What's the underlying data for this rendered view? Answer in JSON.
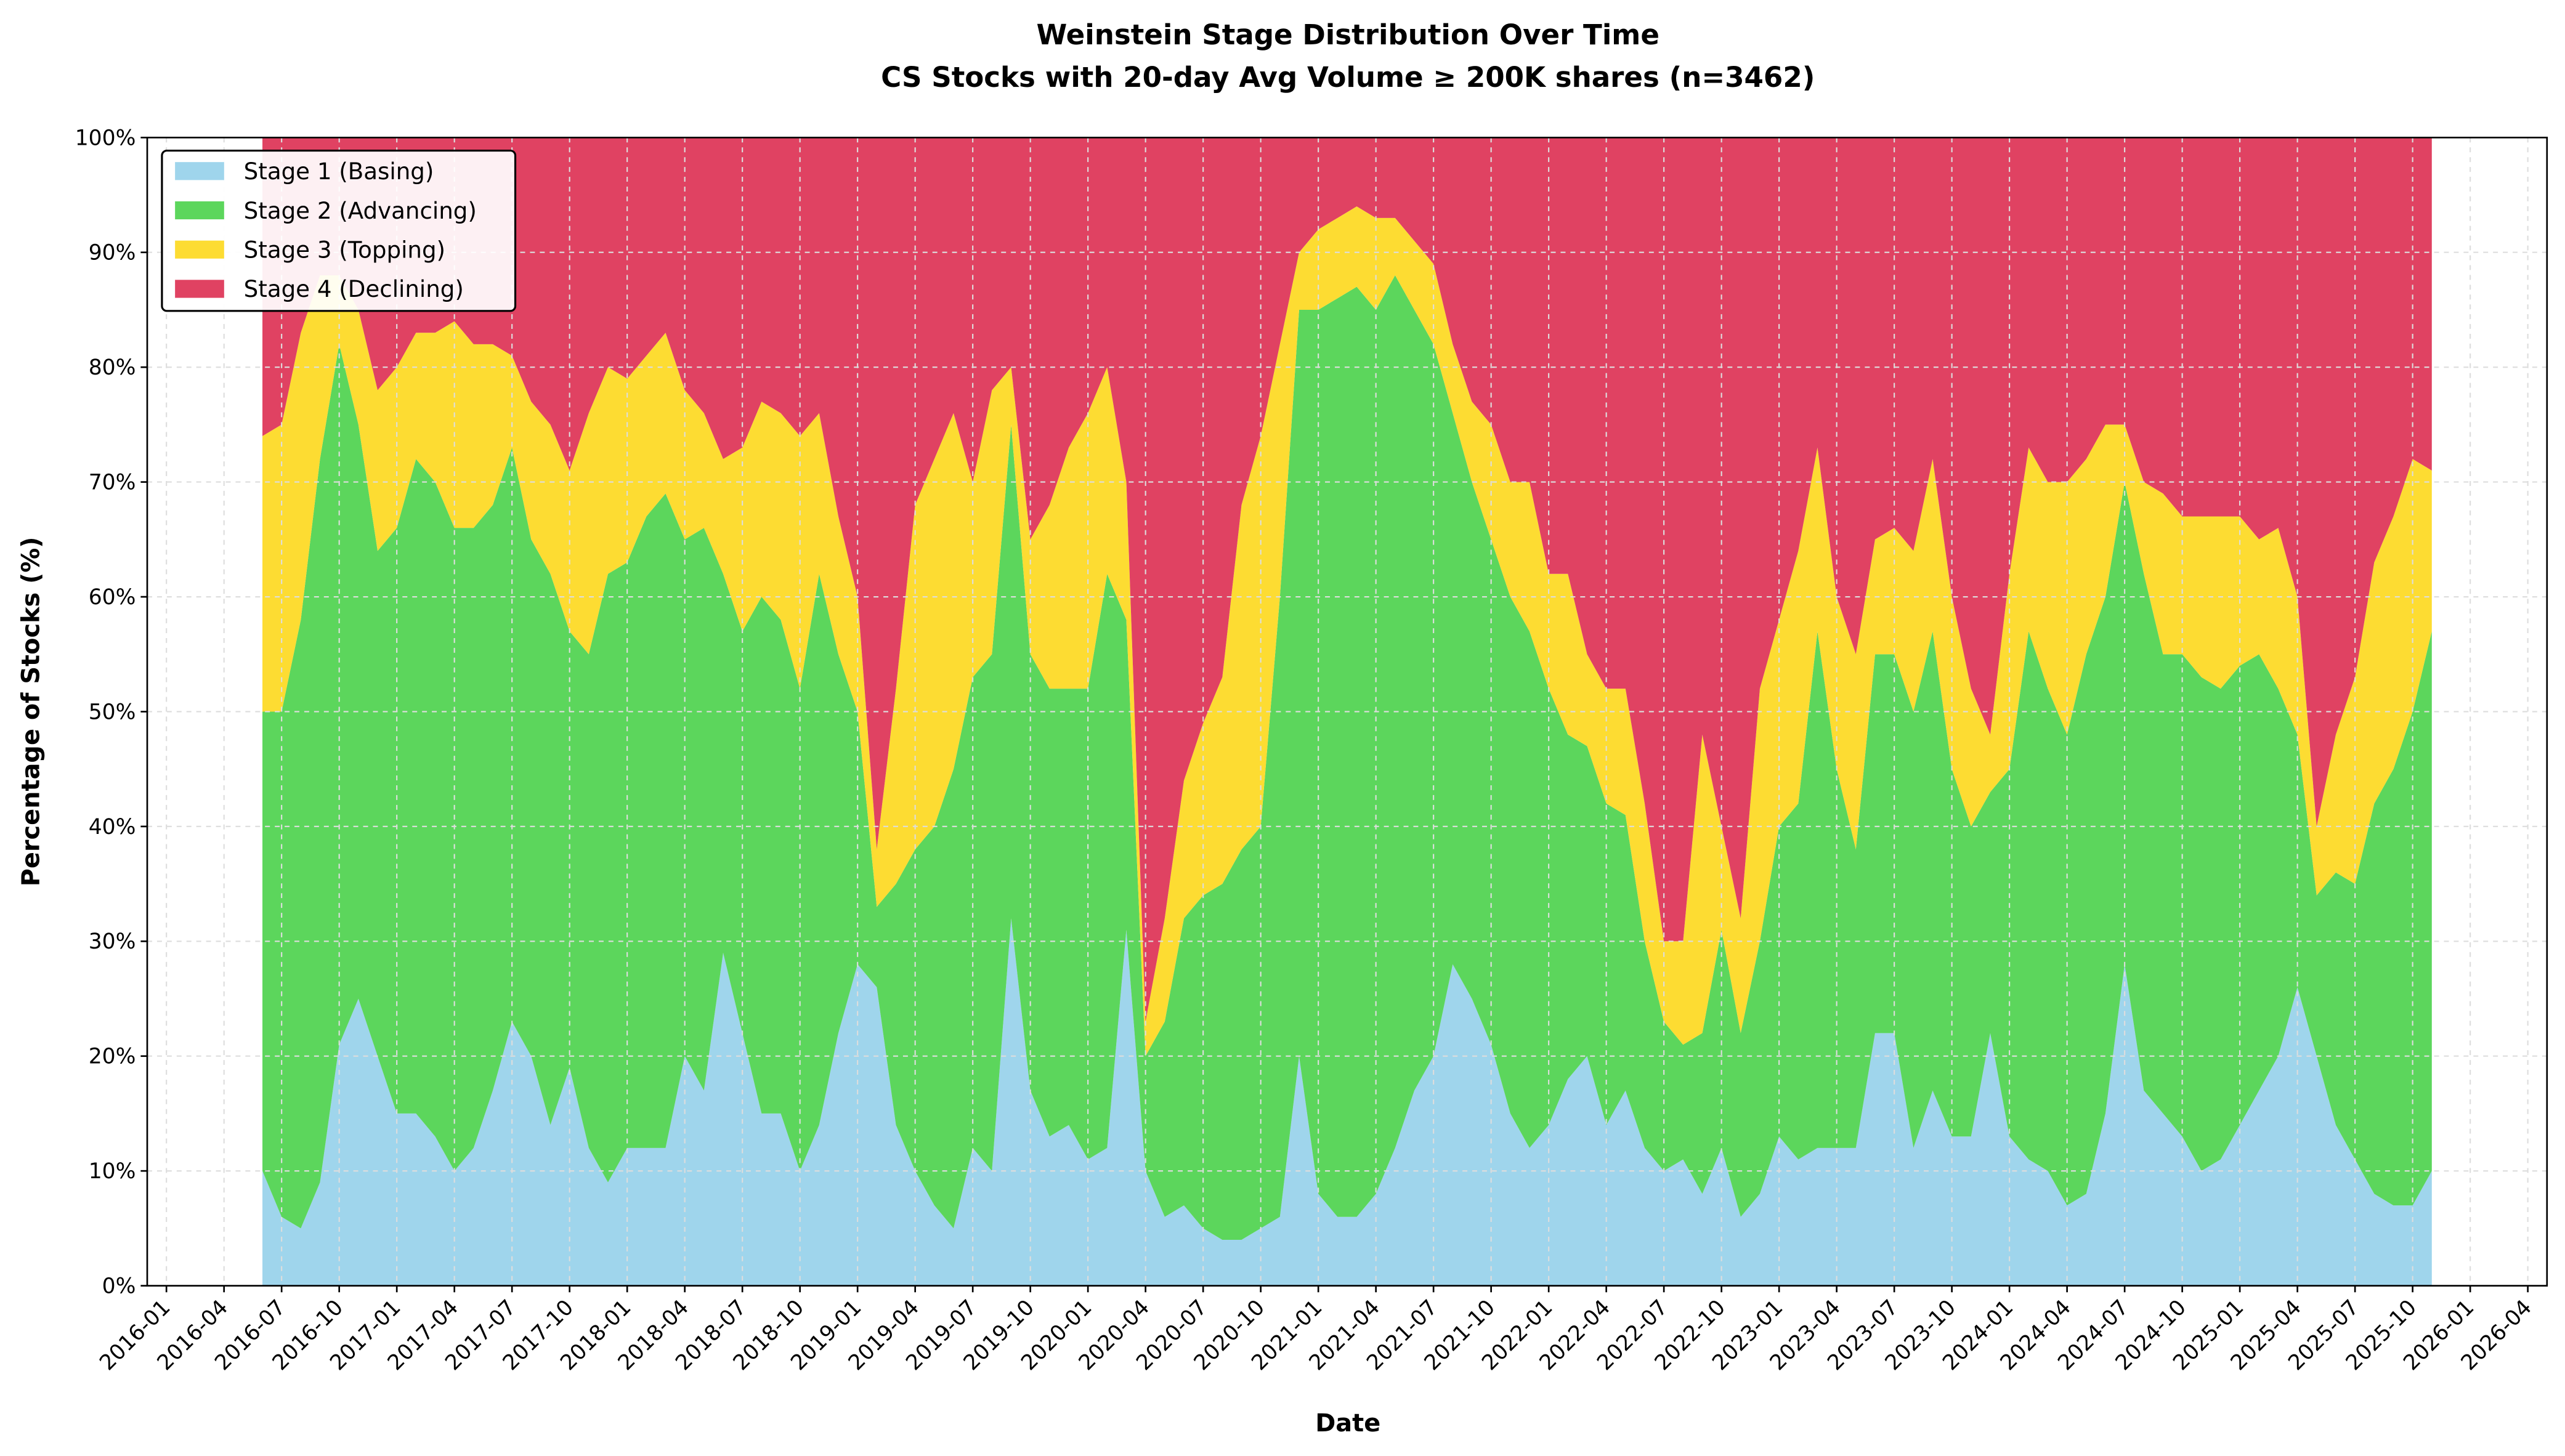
{
  "chart_data": {
    "type": "stacked_area",
    "title": "Weinstein Stage Distribution Over Time",
    "subtitle": "CS Stocks with 20-day Avg Volume ≥ 200K shares (n=3462)",
    "xlabel": "Date",
    "ylabel": "Percentage of Stocks (%)",
    "legend": "upper left",
    "grid": true,
    "xlim": [
      "2015-12",
      "2026-05"
    ],
    "xticks": [
      "2016-01",
      "2016-04",
      "2016-07",
      "2016-10",
      "2017-01",
      "2017-04",
      "2017-07",
      "2017-10",
      "2018-01",
      "2018-04",
      "2018-07",
      "2018-10",
      "2019-01",
      "2019-04",
      "2019-07",
      "2019-10",
      "2020-01",
      "2020-04",
      "2020-07",
      "2020-10",
      "2021-01",
      "2021-04",
      "2021-07",
      "2021-10",
      "2022-01",
      "2022-04",
      "2022-07",
      "2022-10",
      "2023-01",
      "2023-04",
      "2023-07",
      "2023-10",
      "2024-01",
      "2024-04",
      "2024-07",
      "2024-10",
      "2025-01",
      "2025-04",
      "2025-07",
      "2025-10",
      "2026-01",
      "2026-04"
    ],
    "ylim": [
      0,
      100
    ],
    "yticks": [
      {
        "value": 0,
        "label": "0%"
      },
      {
        "value": 10,
        "label": "10%"
      },
      {
        "value": 20,
        "label": "20%"
      },
      {
        "value": 30,
        "label": "30%"
      },
      {
        "value": 40,
        "label": "40%"
      },
      {
        "value": 50,
        "label": "50%"
      },
      {
        "value": 60,
        "label": "60%"
      },
      {
        "value": 70,
        "label": "70%"
      },
      {
        "value": 80,
        "label": "80%"
      },
      {
        "value": 90,
        "label": "90%"
      },
      {
        "value": 100,
        "label": "100%"
      }
    ],
    "x": [
      "2016-06",
      "2016-07",
      "2016-08",
      "2016-09",
      "2016-10",
      "2016-11",
      "2016-12",
      "2017-01",
      "2017-02",
      "2017-03",
      "2017-04",
      "2017-05",
      "2017-06",
      "2017-07",
      "2017-08",
      "2017-09",
      "2017-10",
      "2017-11",
      "2017-12",
      "2018-01",
      "2018-02",
      "2018-03",
      "2018-04",
      "2018-05",
      "2018-06",
      "2018-07",
      "2018-08",
      "2018-09",
      "2018-10",
      "2018-11",
      "2018-12",
      "2019-01",
      "2019-02",
      "2019-03",
      "2019-04",
      "2019-05",
      "2019-06",
      "2019-07",
      "2019-08",
      "2019-09",
      "2019-10",
      "2019-11",
      "2019-12",
      "2020-01",
      "2020-02",
      "2020-03",
      "2020-04",
      "2020-05",
      "2020-06",
      "2020-07",
      "2020-08",
      "2020-09",
      "2020-10",
      "2020-11",
      "2020-12",
      "2021-01",
      "2021-02",
      "2021-03",
      "2021-04",
      "2021-05",
      "2021-06",
      "2021-07",
      "2021-08",
      "2021-09",
      "2021-10",
      "2021-11",
      "2021-12",
      "2022-01",
      "2022-02",
      "2022-03",
      "2022-04",
      "2022-05",
      "2022-06",
      "2022-07",
      "2022-08",
      "2022-09",
      "2022-10",
      "2022-11",
      "2022-12",
      "2023-01",
      "2023-02",
      "2023-03",
      "2023-04",
      "2023-05",
      "2023-06",
      "2023-07",
      "2023-08",
      "2023-09",
      "2023-10",
      "2023-11",
      "2023-12",
      "2024-01",
      "2024-02",
      "2024-03",
      "2024-04",
      "2024-05",
      "2024-06",
      "2024-07",
      "2024-08",
      "2024-09",
      "2024-10",
      "2024-11",
      "2024-12",
      "2025-01",
      "2025-02",
      "2025-03",
      "2025-04",
      "2025-05",
      "2025-06",
      "2025-07",
      "2025-08",
      "2025-09",
      "2025-10",
      "2025-11"
    ],
    "series": [
      {
        "name": "Stage 1 (Basing)",
        "color": "#9fd5ec",
        "values": [
          10,
          6,
          5,
          9,
          21,
          25,
          20,
          15,
          15,
          13,
          10,
          12,
          17,
          23,
          20,
          14,
          19,
          12,
          9,
          12,
          12,
          12,
          20,
          17,
          29,
          22,
          15,
          15,
          10,
          14,
          22,
          28,
          26,
          14,
          10,
          7,
          5,
          12,
          10,
          32,
          17,
          13,
          14,
          11,
          12,
          31,
          10,
          6,
          7,
          5,
          4,
          4,
          5,
          6,
          20,
          8,
          6,
          6,
          8,
          12,
          17,
          20,
          28,
          25,
          21,
          15,
          12,
          14,
          18,
          20,
          14,
          17,
          12,
          10,
          11,
          8,
          12,
          6,
          8,
          13,
          11,
          12,
          12,
          12,
          22,
          22,
          12,
          17,
          13,
          13,
          22,
          13,
          11,
          10,
          7,
          8,
          15,
          28,
          17,
          15,
          13,
          10,
          11,
          14,
          17,
          20,
          26,
          20,
          14,
          11,
          8,
          7,
          7,
          10
        ]
      },
      {
        "name": "Stage 2 (Advancing)",
        "color": "#5cd65c",
        "values": [
          40,
          44,
          53,
          63,
          61,
          50,
          44,
          51,
          57,
          57,
          56,
          54,
          51,
          50,
          45,
          48,
          38,
          43,
          53,
          51,
          55,
          57,
          45,
          49,
          33,
          35,
          45,
          43,
          42,
          48,
          33,
          22,
          7,
          21,
          28,
          33,
          40,
          41,
          45,
          43,
          38,
          39,
          38,
          41,
          50,
          27,
          10,
          17,
          25,
          29,
          31,
          34,
          35,
          54,
          65,
          77,
          80,
          81,
          77,
          76,
          68,
          62,
          48,
          45,
          44,
          45,
          45,
          38,
          30,
          27,
          28,
          24,
          18,
          13,
          10,
          14,
          19,
          16,
          22,
          27,
          31,
          45,
          33,
          26,
          33,
          33,
          38,
          40,
          32,
          27,
          21,
          32,
          46,
          42,
          41,
          47,
          45,
          42,
          45,
          40,
          42,
          43,
          41,
          40,
          38,
          32,
          22,
          14,
          22,
          24,
          34,
          38,
          43,
          47
        ]
      },
      {
        "name": "Stage 3 (Topping)",
        "color": "#fddc32",
        "values": [
          24,
          25,
          25,
          16,
          6,
          10,
          14,
          14,
          11,
          13,
          18,
          16,
          14,
          8,
          12,
          13,
          14,
          21,
          18,
          16,
          14,
          14,
          13,
          10,
          10,
          16,
          17,
          18,
          22,
          14,
          12,
          10,
          5,
          17,
          30,
          32,
          31,
          17,
          23,
          5,
          10,
          16,
          21,
          24,
          18,
          12,
          3,
          9,
          12,
          15,
          18,
          30,
          34,
          22,
          5,
          7,
          7,
          7,
          8,
          5,
          6,
          7,
          6,
          7,
          10,
          10,
          13,
          10,
          14,
          8,
          10,
          11,
          12,
          7,
          9,
          26,
          9,
          10,
          22,
          18,
          22,
          16,
          15,
          17,
          10,
          11,
          14,
          15,
          15,
          12,
          5,
          17,
          16,
          18,
          22,
          17,
          15,
          5,
          8,
          14,
          12,
          14,
          15,
          13,
          10,
          14,
          12,
          6,
          12,
          18,
          21,
          22,
          22,
          14
        ]
      },
      {
        "name": "Stage 4 (Declining)",
        "color": "#e04262",
        "values": [
          26,
          25,
          17,
          12,
          12,
          15,
          22,
          20,
          17,
          17,
          16,
          18,
          18,
          19,
          23,
          25,
          29,
          24,
          20,
          21,
          19,
          17,
          22,
          24,
          28,
          27,
          23,
          24,
          26,
          24,
          33,
          40,
          62,
          48,
          32,
          28,
          24,
          30,
          22,
          20,
          35,
          32,
          27,
          24,
          20,
          30,
          77,
          68,
          56,
          51,
          47,
          32,
          26,
          18,
          10,
          8,
          7,
          6,
          7,
          7,
          9,
          11,
          18,
          23,
          25,
          30,
          30,
          38,
          38,
          45,
          48,
          48,
          58,
          70,
          70,
          52,
          60,
          68,
          48,
          42,
          36,
          27,
          40,
          45,
          35,
          34,
          36,
          28,
          40,
          48,
          52,
          38,
          27,
          30,
          30,
          28,
          25,
          25,
          30,
          31,
          33,
          33,
          33,
          33,
          35,
          34,
          40,
          60,
          52,
          47,
          37,
          33,
          28,
          29
        ]
      }
    ]
  }
}
